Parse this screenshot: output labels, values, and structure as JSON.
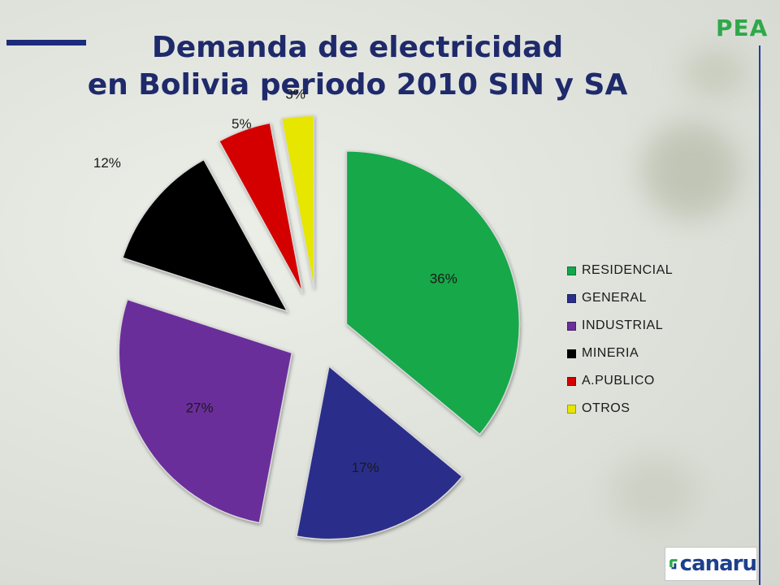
{
  "slide": {
    "tag": "PEA",
    "title_line1": "Demanda de electricidad",
    "title_line2": "en Bolivia periodo 2010 SIN y SA",
    "logo_text": "canaru"
  },
  "chart_data": {
    "type": "pie",
    "title": "Demanda de electricidad en Bolivia periodo 2010 SIN y SA",
    "categories": [
      "RESIDENCIAL",
      "GENERAL",
      "INDUSTRIAL",
      "MINERIA",
      "A.PUBLICO",
      "OTROS"
    ],
    "values": [
      36,
      17,
      27,
      12,
      5,
      3
    ],
    "labels": [
      "36%",
      "17%",
      "27%",
      "12%",
      "5%",
      "3%"
    ],
    "colors": [
      "#12a84a",
      "#2a2f8a",
      "#6a2f9a",
      "#000000",
      "#d40000",
      "#e6e600"
    ],
    "exploded": true,
    "legend_position": "right"
  }
}
